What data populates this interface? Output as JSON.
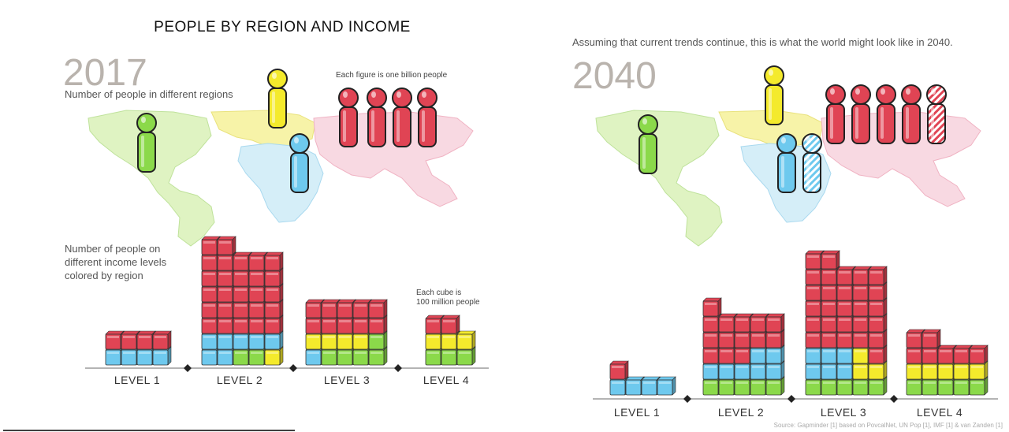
{
  "title": "PEOPLE BY REGION AND INCOME",
  "colors": {
    "americas": "#8bd94a",
    "europe": "#f4ea2c",
    "africa": "#6ec9ee",
    "asia": "#e04454",
    "map_americas": "#dff3c2",
    "map_europe": "#f7f3a8",
    "map_africa": "#d5eef8",
    "map_asia": "#f8d9e2",
    "axis": "#666666"
  },
  "icons": {
    "person": "person-figure-icon",
    "cube": "cube-icon",
    "diamond": "diamond-marker-icon"
  },
  "panel_2017": {
    "year": "2017",
    "regions_caption": "Number of people in different regions",
    "figure_note": "Each figure is one billion people",
    "income_caption_lines": [
      "Number of people on",
      "different income levels",
      "colored by region"
    ],
    "cube_note_lines": [
      "Each cube is",
      "100 million people"
    ],
    "figures": {
      "americas": 1,
      "europe": 1,
      "africa": 1,
      "asia": 4
    },
    "levels": [
      {
        "label": "LEVEL 1",
        "columns": [
          [
            "africa",
            "asia"
          ],
          [
            "africa",
            "asia"
          ],
          [
            "africa",
            "asia"
          ],
          [
            "africa",
            "asia"
          ]
        ]
      },
      {
        "label": "LEVEL 2",
        "columns": [
          [
            "africa",
            "africa",
            "asia",
            "asia",
            "asia",
            "asia",
            "asia",
            "asia"
          ],
          [
            "africa",
            "africa",
            "asia",
            "asia",
            "asia",
            "asia",
            "asia",
            "asia"
          ],
          [
            "americas",
            "africa",
            "asia",
            "asia",
            "asia",
            "asia",
            "asia"
          ],
          [
            "americas",
            "africa",
            "asia",
            "asia",
            "asia",
            "asia",
            "asia"
          ],
          [
            "europe",
            "africa",
            "asia",
            "asia",
            "asia",
            "asia",
            "asia"
          ]
        ]
      },
      {
        "label": "LEVEL 3",
        "columns": [
          [
            "africa",
            "europe",
            "asia",
            "asia"
          ],
          [
            "americas",
            "europe",
            "asia",
            "asia"
          ],
          [
            "americas",
            "europe",
            "asia",
            "asia"
          ],
          [
            "americas",
            "europe",
            "asia",
            "asia"
          ],
          [
            "americas",
            "americas",
            "asia",
            "asia"
          ]
        ]
      },
      {
        "label": "LEVEL 4",
        "columns": [
          [
            "americas",
            "europe",
            "asia"
          ],
          [
            "americas",
            "europe",
            "asia"
          ],
          [
            "americas",
            "europe"
          ]
        ]
      }
    ]
  },
  "panel_2040": {
    "year": "2040",
    "regions_caption": "Assuming that current trends continue, this is what the world might look like in 2040.",
    "source": "Source: Gapminder [1] based on PovcalNet, UN Pop [1], IMF [1] & van Zanden [1]",
    "figures": {
      "americas": 1,
      "europe": 1,
      "africa": 2,
      "asia": 5
    },
    "levels": [
      {
        "label": "LEVEL 1",
        "columns": [
          [
            "africa",
            "asia"
          ],
          [
            "africa"
          ],
          [
            "africa"
          ],
          [
            "africa"
          ]
        ]
      },
      {
        "label": "LEVEL 2",
        "columns": [
          [
            "americas",
            "africa",
            "asia",
            "asia",
            "asia",
            "asia"
          ],
          [
            "americas",
            "africa",
            "asia",
            "asia",
            "asia"
          ],
          [
            "americas",
            "africa",
            "asia",
            "asia",
            "asia"
          ],
          [
            "americas",
            "africa",
            "africa",
            "asia",
            "asia"
          ],
          [
            "americas",
            "africa",
            "africa",
            "asia",
            "asia"
          ]
        ]
      },
      {
        "label": "LEVEL 3",
        "columns": [
          [
            "americas",
            "africa",
            "africa",
            "asia",
            "asia",
            "asia",
            "asia",
            "asia",
            "asia"
          ],
          [
            "americas",
            "africa",
            "africa",
            "asia",
            "asia",
            "asia",
            "asia",
            "asia",
            "asia"
          ],
          [
            "americas",
            "africa",
            "africa",
            "asia",
            "asia",
            "asia",
            "asia",
            "asia"
          ],
          [
            "americas",
            "europe",
            "europe",
            "asia",
            "asia",
            "asia",
            "asia",
            "asia"
          ],
          [
            "americas",
            "europe",
            "asia",
            "asia",
            "asia",
            "asia",
            "asia",
            "asia"
          ]
        ]
      },
      {
        "label": "LEVEL 4",
        "columns": [
          [
            "americas",
            "europe",
            "asia",
            "asia"
          ],
          [
            "americas",
            "europe",
            "asia",
            "asia"
          ],
          [
            "americas",
            "europe",
            "asia"
          ],
          [
            "americas",
            "europe",
            "asia"
          ],
          [
            "americas",
            "europe",
            "asia"
          ]
        ]
      }
    ]
  }
}
